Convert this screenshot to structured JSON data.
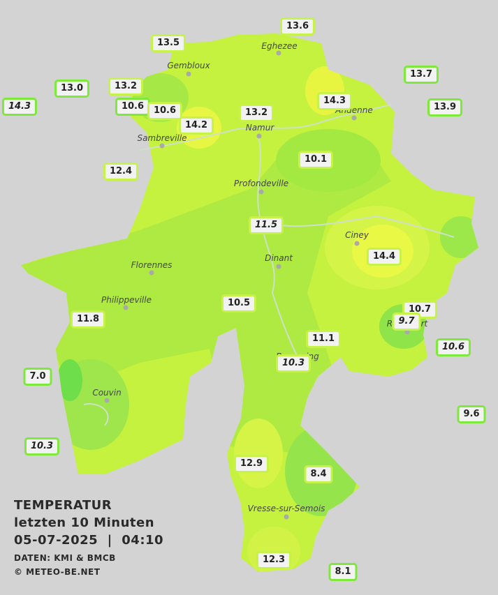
{
  "legend": {
    "title": "TEMPERATUR",
    "period": "letzten 10 Minuten",
    "datetime": "05-07-2025  |  04:10",
    "source": "DATEN: KMI & BMCB",
    "copyright": "© METEO-BE.NET"
  },
  "towns": [
    "Eghezee",
    "Gembloux",
    "Andenne",
    "Namur",
    "Sambreville",
    "Profondeville",
    "Ciney",
    "Dinant",
    "Florennes",
    "Philippeville",
    "Rochefort",
    "Beauraing",
    "Couvin",
    "Vresse-sur-Semois"
  ],
  "stations": [
    "13.6",
    "13.5",
    "13.7",
    "13.0",
    "13.2",
    "14.3",
    "10.6",
    "10.6",
    "14.3",
    "13.9",
    "13.2",
    "14.2",
    "10.1",
    "12.4",
    "11.5",
    "14.4",
    "10.5",
    "10.7",
    "9.7",
    "11.8",
    "10.6",
    "11.1",
    "10.3",
    "7.0",
    "9.6",
    "10.3",
    "12.9",
    "8.4",
    "12.3",
    "8.1"
  ]
}
